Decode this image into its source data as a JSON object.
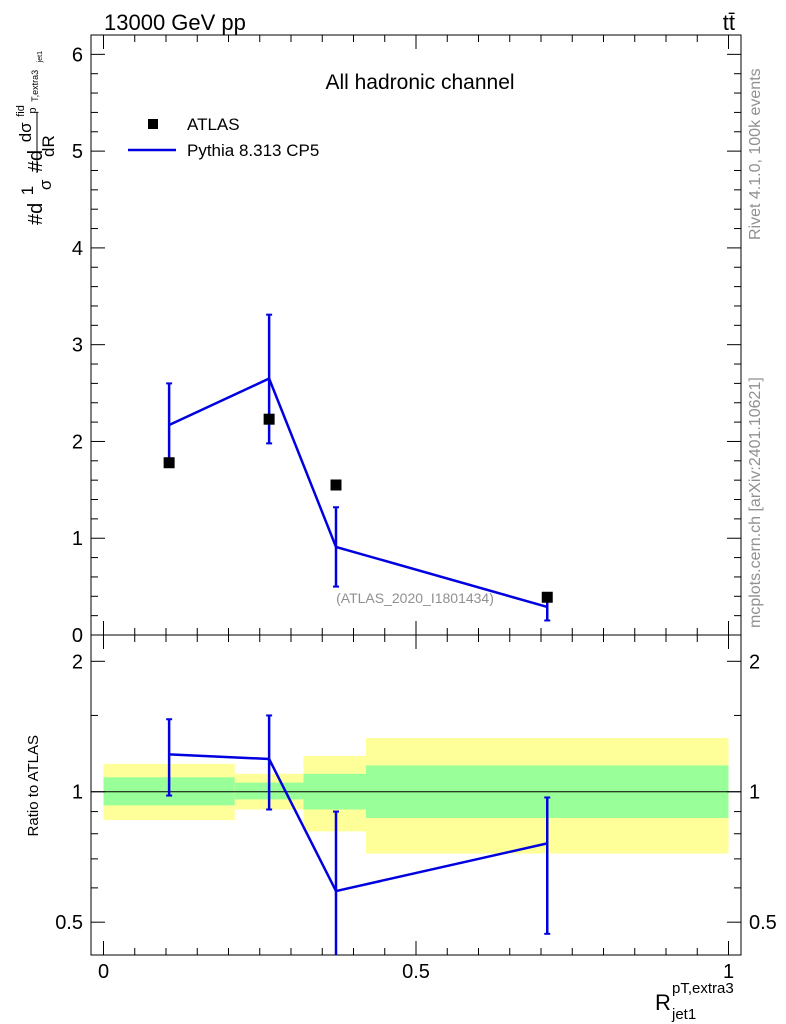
{
  "chart_data": [
    {
      "type": "scatter",
      "title": "All hadronic channel",
      "header_left": "13000 GeV pp",
      "header_right": "tt̄",
      "ylabel": "#d¹⁄σ #d dσfid / dR (p_T,extra3 jet1)",
      "ylabel_parts": {
        "d1": "#d",
        "one": "1",
        "sigma": "σ",
        "d2": "#d",
        "num": "dσ",
        "fid": "fid",
        "sub": "p",
        "subsub": "T,extra3",
        "den": "dR",
        "densub": "jet1"
      },
      "xlabel": "R",
      "xlabel_sup": "pT,extra3",
      "xlabel_sub": "jet1",
      "xlim": [
        -0.02,
        1.02
      ],
      "ylim": [
        0,
        6.2
      ],
      "yticks": [
        0,
        1,
        2,
        3,
        4,
        5,
        6
      ],
      "ytick_labels": [
        "0",
        "1",
        "2",
        "3",
        "4",
        "5",
        "6"
      ],
      "legend": [
        {
          "name": "ATLAS",
          "marker": "square",
          "color": "#000000"
        },
        {
          "name": "Pythia 8.313 CP5",
          "marker": "line",
          "color": "#0000e0"
        }
      ],
      "legend_position": "top-left",
      "analysis_label": "(ATLAS_2020_I1801434)",
      "series": [
        {
          "name": "ATLAS",
          "x": [
            0.105,
            0.265,
            0.372,
            0.71
          ],
          "y": [
            1.78,
            2.23,
            1.55,
            0.39
          ]
        },
        {
          "name": "Pythia 8.313 CP5",
          "x": [
            0.105,
            0.265,
            0.372,
            0.71
          ],
          "y": [
            2.17,
            2.65,
            0.91,
            0.29
          ],
          "yerr_low": [
            0.39,
            0.67,
            0.41,
            0.14
          ],
          "yerr_high": [
            0.43,
            0.66,
            0.41,
            0.14
          ]
        }
      ]
    },
    {
      "type": "line",
      "ylabel": "Ratio to ATLAS",
      "xlim": [
        -0.02,
        1.02
      ],
      "ylim": [
        0.42,
        2.3
      ],
      "yscale": "log",
      "yticks": [
        0.5,
        1,
        2
      ],
      "ytick_labels": [
        "0.5",
        "1",
        "2"
      ],
      "xticks": [
        0,
        0.5,
        1
      ],
      "xtick_labels": [
        "0",
        "0.5",
        "1"
      ],
      "reference_line": 1,
      "bands": [
        {
          "x0": 0.0,
          "x1": 0.21,
          "inner": [
            0.93,
            1.08
          ],
          "outer": [
            0.86,
            1.16
          ]
        },
        {
          "x0": 0.21,
          "x1": 0.32,
          "inner": [
            0.96,
            1.05
          ],
          "outer": [
            0.91,
            1.1
          ]
        },
        {
          "x0": 0.32,
          "x1": 0.42,
          "inner": [
            0.91,
            1.1
          ],
          "outer": [
            0.81,
            1.21
          ]
        },
        {
          "x0": 0.42,
          "x1": 1.0,
          "inner": [
            0.87,
            1.15
          ],
          "outer": [
            0.72,
            1.33
          ]
        }
      ],
      "series": [
        {
          "name": "Pythia 8.313 CP5",
          "x": [
            0.105,
            0.265,
            0.372,
            0.71
          ],
          "y": [
            1.22,
            1.19,
            0.59,
            0.76
          ],
          "yerr_low": [
            0.24,
            0.28,
            0.18,
            0.29
          ],
          "yerr_high": [
            0.25,
            0.31,
            0.31,
            0.21
          ]
        }
      ]
    }
  ],
  "side_text": {
    "rivet": "Rivet 4.1.0,  100k events",
    "mcplots": "mcplots.cern.ch [arXiv:2401.10621]"
  }
}
